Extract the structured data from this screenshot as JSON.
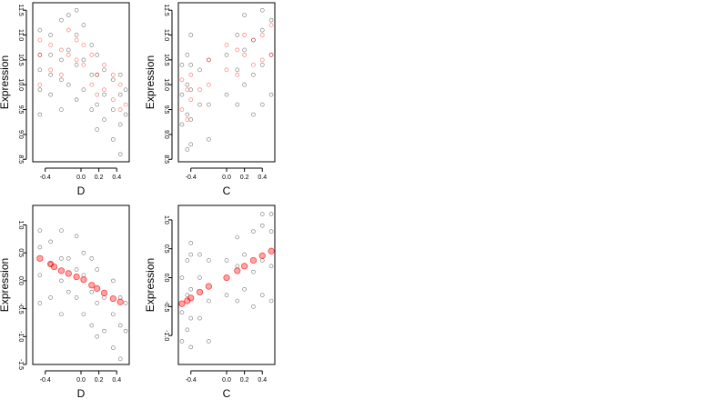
{
  "chart_data": [
    {
      "type": "scatter",
      "xlabel": "D",
      "ylabel": "Expression",
      "xlim": [
        -0.54,
        0.54
      ],
      "ylim": [
        8.45,
        11.65
      ],
      "xticks": [
        -0.4,
        0.0,
        0.2,
        0.4
      ],
      "xtick_labels": [
        "-0.4",
        "0.0",
        "0.2",
        "0.4"
      ],
      "yticks": [
        8.5,
        9.0,
        9.5,
        10.0,
        10.5,
        11.0,
        11.5
      ],
      "ytick_labels": [
        "8.5",
        "9.0",
        "9.5",
        "10.0",
        "10.5",
        "11.0",
        "11.5"
      ],
      "series": [
        {
          "color": "#000000",
          "marker": "open-circle",
          "points": [
            [
              -0.46,
              9.4
            ],
            [
              -0.46,
              9.9
            ],
            [
              -0.46,
              10.3
            ],
            [
              -0.46,
              10.6
            ],
            [
              -0.46,
              11.1
            ],
            [
              -0.34,
              9.8
            ],
            [
              -0.34,
              10.2
            ],
            [
              -0.34,
              10.6
            ],
            [
              -0.34,
              11.0
            ],
            [
              -0.22,
              9.5
            ],
            [
              -0.22,
              10.1
            ],
            [
              -0.22,
              10.5
            ],
            [
              -0.22,
              11.3
            ],
            [
              -0.14,
              10.0
            ],
            [
              -0.14,
              10.7
            ],
            [
              -0.14,
              11.4
            ],
            [
              -0.05,
              9.7
            ],
            [
              -0.05,
              10.4
            ],
            [
              -0.05,
              11.0
            ],
            [
              -0.05,
              11.5
            ],
            [
              0.03,
              9.9
            ],
            [
              0.03,
              10.5
            ],
            [
              0.03,
              11.2
            ],
            [
              0.12,
              9.5
            ],
            [
              0.12,
              10.2
            ],
            [
              0.12,
              10.8
            ],
            [
              0.18,
              9.1
            ],
            [
              0.18,
              9.6
            ],
            [
              0.18,
              10.2
            ],
            [
              0.18,
              10.6
            ],
            [
              0.26,
              9.3
            ],
            [
              0.26,
              9.8
            ],
            [
              0.26,
              10.3
            ],
            [
              0.36,
              8.9
            ],
            [
              0.36,
              9.5
            ],
            [
              0.36,
              10.1
            ],
            [
              0.44,
              8.6
            ],
            [
              0.44,
              9.2
            ],
            [
              0.44,
              9.8
            ],
            [
              0.44,
              10.2
            ],
            [
              0.5,
              9.4
            ],
            [
              0.5,
              9.9
            ]
          ]
        },
        {
          "color": "#ff0000",
          "marker": "open-circle",
          "points": [
            [
              -0.46,
              10.0
            ],
            [
              -0.46,
              10.6
            ],
            [
              -0.46,
              10.9
            ],
            [
              -0.34,
              10.3
            ],
            [
              -0.34,
              10.8
            ],
            [
              -0.22,
              10.2
            ],
            [
              -0.22,
              10.7
            ],
            [
              -0.14,
              10.6
            ],
            [
              -0.14,
              11.1
            ],
            [
              -0.05,
              10.5
            ],
            [
              -0.05,
              10.9
            ],
            [
              0.03,
              10.4
            ],
            [
              0.03,
              10.8
            ],
            [
              0.12,
              10.0
            ],
            [
              0.12,
              10.6
            ],
            [
              0.18,
              9.8
            ],
            [
              0.18,
              10.2
            ],
            [
              0.26,
              9.9
            ],
            [
              0.26,
              10.4
            ],
            [
              0.36,
              9.7
            ],
            [
              0.36,
              10.2
            ],
            [
              0.44,
              9.5
            ],
            [
              0.44,
              10.0
            ],
            [
              0.5,
              9.6
            ]
          ]
        }
      ]
    },
    {
      "type": "scatter",
      "xlabel": "C",
      "ylabel": "Expression",
      "xlim": [
        -0.54,
        0.54
      ],
      "ylim": [
        8.45,
        11.65
      ],
      "xticks": [
        -0.4,
        0.0,
        0.2,
        0.4
      ],
      "xtick_labels": [
        "-0.4",
        "0.0",
        "0.2",
        "0.4"
      ],
      "yticks": [
        8.5,
        9.0,
        9.5,
        10.0,
        10.5,
        11.0,
        11.5
      ],
      "ytick_labels": [
        "8.5",
        "9.0",
        "9.5",
        "10.0",
        "10.5",
        "11.0",
        "11.5"
      ],
      "series": [
        {
          "color": "#000000",
          "marker": "open-circle",
          "points": [
            [
              -0.5,
              9.2
            ],
            [
              -0.5,
              9.8
            ],
            [
              -0.5,
              10.4
            ],
            [
              -0.44,
              8.7
            ],
            [
              -0.44,
              9.4
            ],
            [
              -0.44,
              10.0
            ],
            [
              -0.44,
              10.6
            ],
            [
              -0.4,
              8.8
            ],
            [
              -0.4,
              9.3
            ],
            [
              -0.4,
              9.9
            ],
            [
              -0.4,
              10.4
            ],
            [
              -0.4,
              11.0
            ],
            [
              -0.3,
              9.6
            ],
            [
              -0.3,
              10.3
            ],
            [
              -0.2,
              8.9
            ],
            [
              -0.2,
              9.6
            ],
            [
              -0.2,
              10.5
            ],
            [
              0.0,
              9.8
            ],
            [
              0.0,
              10.6
            ],
            [
              0.12,
              9.6
            ],
            [
              0.12,
              10.3
            ],
            [
              0.12,
              11.0
            ],
            [
              0.2,
              10.0
            ],
            [
              0.2,
              10.7
            ],
            [
              0.2,
              11.4
            ],
            [
              0.3,
              9.4
            ],
            [
              0.3,
              10.2
            ],
            [
              0.3,
              10.9
            ],
            [
              0.4,
              9.6
            ],
            [
              0.4,
              10.4
            ],
            [
              0.4,
              11.1
            ],
            [
              0.4,
              11.5
            ],
            [
              0.5,
              9.8
            ],
            [
              0.5,
              10.6
            ],
            [
              0.5,
              11.3
            ]
          ]
        },
        {
          "color": "#ff0000",
          "marker": "open-circle",
          "points": [
            [
              -0.5,
              9.5
            ],
            [
              -0.5,
              10.1
            ],
            [
              -0.44,
              9.3
            ],
            [
              -0.44,
              9.9
            ],
            [
              -0.4,
              9.7
            ],
            [
              -0.4,
              10.2
            ],
            [
              -0.3,
              9.9
            ],
            [
              -0.2,
              10.0
            ],
            [
              -0.2,
              10.5
            ],
            [
              0.0,
              10.3
            ],
            [
              0.0,
              10.8
            ],
            [
              0.12,
              10.2
            ],
            [
              0.12,
              10.7
            ],
            [
              0.2,
              10.6
            ],
            [
              0.2,
              11.0
            ],
            [
              0.3,
              10.4
            ],
            [
              0.3,
              10.9
            ],
            [
              0.4,
              10.5
            ],
            [
              0.4,
              11.0
            ],
            [
              0.5,
              10.6
            ],
            [
              0.5,
              11.2
            ]
          ]
        }
      ]
    },
    {
      "type": "scatter",
      "xlabel": "D",
      "ylabel": "Expression",
      "xlim": [
        -0.54,
        0.54
      ],
      "ylim": [
        -1.5,
        1.35
      ],
      "xticks": [
        -0.4,
        0.0,
        0.2,
        0.4
      ],
      "xtick_labels": [
        "-0.4",
        "0.0",
        "0.2",
        "0.4"
      ],
      "yticks": [
        -1.5,
        -1.0,
        -0.5,
        0.0,
        0.5,
        1.0
      ],
      "ytick_labels": [
        "-1.5",
        "-1.0",
        "-0.5",
        "0.0",
        "0.5",
        "1.0"
      ],
      "series": [
        {
          "color": "#000000",
          "marker": "open-circle",
          "points": [
            [
              -0.46,
              -0.4
            ],
            [
              -0.46,
              0.1
            ],
            [
              -0.46,
              0.6
            ],
            [
              -0.46,
              0.9
            ],
            [
              -0.34,
              -0.3
            ],
            [
              -0.34,
              0.3
            ],
            [
              -0.34,
              0.7
            ],
            [
              -0.22,
              -0.6
            ],
            [
              -0.22,
              0.0
            ],
            [
              -0.22,
              0.4
            ],
            [
              -0.22,
              0.9
            ],
            [
              -0.14,
              -0.2
            ],
            [
              -0.14,
              0.4
            ],
            [
              -0.05,
              -0.3
            ],
            [
              -0.05,
              0.2
            ],
            [
              -0.05,
              0.8
            ],
            [
              0.03,
              -0.6
            ],
            [
              0.03,
              0.1
            ],
            [
              0.03,
              0.5
            ],
            [
              0.12,
              -0.8
            ],
            [
              0.12,
              -0.2
            ],
            [
              0.12,
              0.4
            ],
            [
              0.18,
              -1.0
            ],
            [
              0.18,
              -0.4
            ],
            [
              0.18,
              0.2
            ],
            [
              0.26,
              -0.9
            ],
            [
              0.26,
              -0.3
            ],
            [
              0.36,
              -1.2
            ],
            [
              0.36,
              -0.6
            ],
            [
              0.36,
              0.0
            ],
            [
              0.44,
              -1.4
            ],
            [
              0.44,
              -0.8
            ],
            [
              0.44,
              -0.3
            ],
            [
              0.5,
              -0.9
            ],
            [
              0.5,
              -0.4
            ]
          ]
        },
        {
          "color": "#ff0000",
          "marker": "filled-circle",
          "points": [
            [
              -0.46,
              0.4
            ],
            [
              -0.34,
              0.3
            ],
            [
              -0.3,
              0.25
            ],
            [
              -0.22,
              0.18
            ],
            [
              -0.14,
              0.13
            ],
            [
              -0.05,
              0.07
            ],
            [
              0.03,
              0.02
            ],
            [
              0.12,
              -0.08
            ],
            [
              0.18,
              -0.14
            ],
            [
              0.26,
              -0.22
            ],
            [
              0.36,
              -0.32
            ],
            [
              0.44,
              -0.38
            ]
          ]
        }
      ]
    },
    {
      "type": "scatter",
      "xlabel": "C",
      "ylabel": "Expression",
      "xlim": [
        -0.54,
        0.54
      ],
      "ylim": [
        -1.5,
        1.25
      ],
      "xticks": [
        -0.4,
        0.0,
        0.2,
        0.4
      ],
      "xtick_labels": [
        "-0.4",
        "0.0",
        "0.2",
        "0.4"
      ],
      "yticks": [
        -1.0,
        -0.5,
        0.0,
        0.5,
        1.0
      ],
      "ytick_labels": [
        "-1.0",
        "-0.5",
        "0.0",
        "0.5",
        "1.0"
      ],
      "series": [
        {
          "color": "#000000",
          "marker": "open-circle",
          "points": [
            [
              -0.5,
              -1.1
            ],
            [
              -0.5,
              -0.6
            ],
            [
              -0.5,
              0.0
            ],
            [
              -0.44,
              -0.9
            ],
            [
              -0.44,
              -0.3
            ],
            [
              -0.44,
              0.3
            ],
            [
              -0.4,
              -1.2
            ],
            [
              -0.4,
              -0.7
            ],
            [
              -0.4,
              -0.2
            ],
            [
              -0.4,
              0.4
            ],
            [
              -0.4,
              0.6
            ],
            [
              -0.3,
              -0.7
            ],
            [
              -0.3,
              0.0
            ],
            [
              -0.3,
              0.4
            ],
            [
              -0.2,
              -1.1
            ],
            [
              -0.2,
              -0.4
            ],
            [
              -0.2,
              0.3
            ],
            [
              0.0,
              -0.3
            ],
            [
              0.0,
              0.3
            ],
            [
              0.12,
              -0.4
            ],
            [
              0.12,
              0.2
            ],
            [
              0.12,
              0.7
            ],
            [
              0.2,
              -0.2
            ],
            [
              0.2,
              0.4
            ],
            [
              0.3,
              -0.5
            ],
            [
              0.3,
              0.1
            ],
            [
              0.3,
              0.8
            ],
            [
              0.4,
              -0.3
            ],
            [
              0.4,
              0.3
            ],
            [
              0.4,
              0.9
            ],
            [
              0.4,
              1.1
            ],
            [
              0.5,
              -0.4
            ],
            [
              0.5,
              0.2
            ],
            [
              0.5,
              0.8
            ],
            [
              0.5,
              1.1
            ]
          ]
        },
        {
          "color": "#ff0000",
          "marker": "filled-circle",
          "points": [
            [
              -0.5,
              -0.45
            ],
            [
              -0.44,
              -0.4
            ],
            [
              -0.4,
              -0.35
            ],
            [
              -0.3,
              -0.25
            ],
            [
              -0.2,
              -0.15
            ],
            [
              0.0,
              0.0
            ],
            [
              0.12,
              0.12
            ],
            [
              0.2,
              0.2
            ],
            [
              0.3,
              0.3
            ],
            [
              0.4,
              0.38
            ],
            [
              0.5,
              0.46
            ]
          ]
        }
      ]
    }
  ]
}
